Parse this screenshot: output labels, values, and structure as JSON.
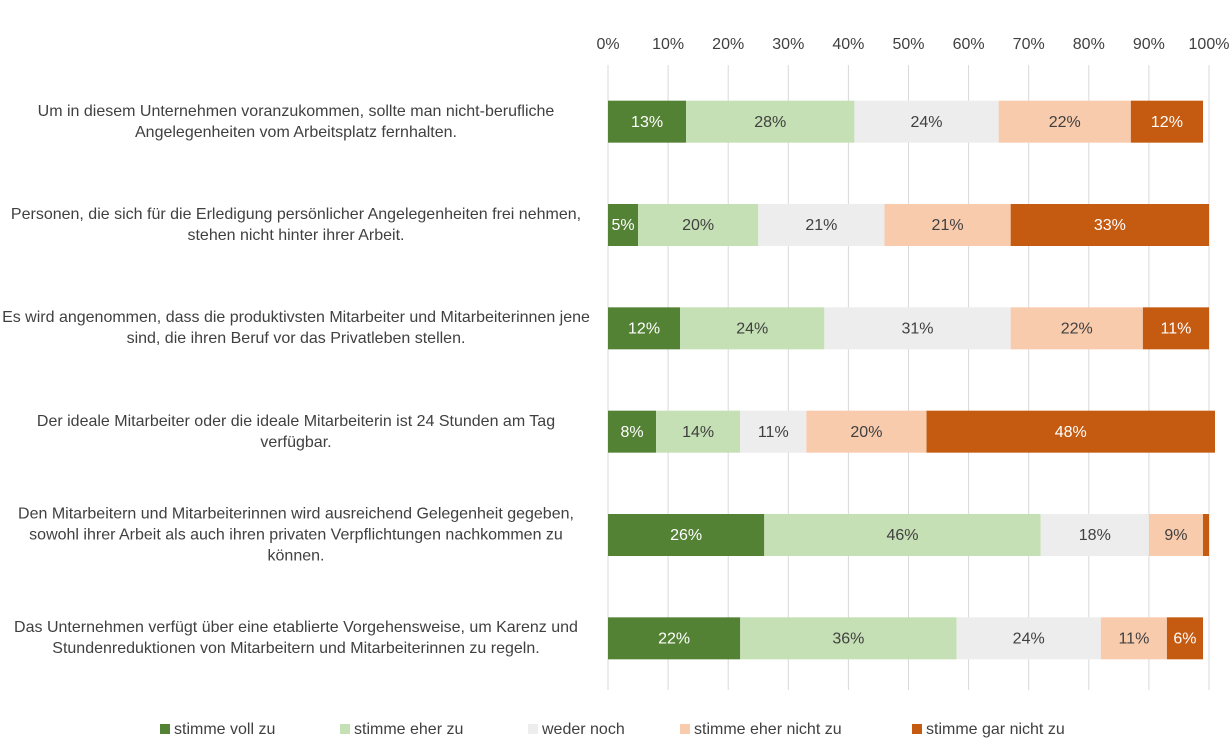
{
  "chart_data": {
    "type": "stacked-bar-horizontal",
    "categories": [
      "Um in diesem Unternehmen voranzukommen, sollte man nicht-berufliche Angelegenheiten vom Arbeitsplatz fernhalten.",
      "Personen, die sich für die Erledigung persönlicher Angelegenheiten frei nehmen, stehen nicht hinter ihrer Arbeit.",
      "Es wird angenommen, dass die produktivsten Mitarbeiter und Mitarbeiterinnen jene sind, die ihren Beruf vor das Privatleben stellen.",
      "Der ideale Mitarbeiter oder die ideale Mitarbeiterin ist 24 Stunden am Tag verfügbar.",
      "Den Mitarbeitern und Mitarbeiterinnen wird ausreichend Gelegenheit gegeben, sowohl ihrer Arbeit als auch ihren privaten Verpflichtungen nachkommen zu können.",
      "Das Unternehmen verfügt über eine etablierte Vorgehensweise, um Karenz und Stundenreduktionen von Mitarbeitern und Mitarbeiterinnen zu regeln."
    ],
    "series": [
      {
        "name": "stimme voll zu",
        "color": "#548235",
        "values": [
          13,
          5,
          12,
          8,
          26,
          22
        ],
        "value_labels": [
          "13%",
          "5%",
          "12%",
          "8%",
          "26%",
          "22%"
        ]
      },
      {
        "name": "stimme eher zu",
        "color": "#c5e0b4",
        "values": [
          28,
          20,
          24,
          14,
          46,
          36
        ],
        "value_labels": [
          "28%",
          "20%",
          "24%",
          "14%",
          "46%",
          "36%"
        ]
      },
      {
        "name": "weder noch",
        "color": "#ededed",
        "values": [
          24,
          21,
          31,
          11,
          18,
          24
        ],
        "value_labels": [
          "24%",
          "21%",
          "31%",
          "11%",
          "18%",
          "24%"
        ]
      },
      {
        "name": "stimme eher nicht zu",
        "color": "#f8cbad",
        "values": [
          22,
          21,
          22,
          20,
          9,
          11
        ],
        "value_labels": [
          "22%",
          "21%",
          "22%",
          "20%",
          "9%",
          "11%"
        ]
      },
      {
        "name": "stimme gar nicht zu",
        "color": "#c55a11",
        "values": [
          12,
          33,
          11,
          48,
          1,
          6
        ],
        "value_labels": [
          "12%",
          "33%",
          "11%",
          "48%",
          null,
          "6%"
        ]
      }
    ],
    "xlim": [
      0,
      100
    ],
    "xticks": [
      {
        "value": 0,
        "label": "0%"
      },
      {
        "value": 10,
        "label": "10%"
      },
      {
        "value": 20,
        "label": "20%"
      },
      {
        "value": 30,
        "label": "30%"
      },
      {
        "value": 40,
        "label": "40%"
      },
      {
        "value": 50,
        "label": "50%"
      },
      {
        "value": 60,
        "label": "60%"
      },
      {
        "value": 70,
        "label": "70%"
      },
      {
        "value": 80,
        "label": "80%"
      },
      {
        "value": 90,
        "label": "90%"
      },
      {
        "value": 100,
        "label": "100%"
      }
    ],
    "grid": true,
    "legend": "bottom"
  }
}
